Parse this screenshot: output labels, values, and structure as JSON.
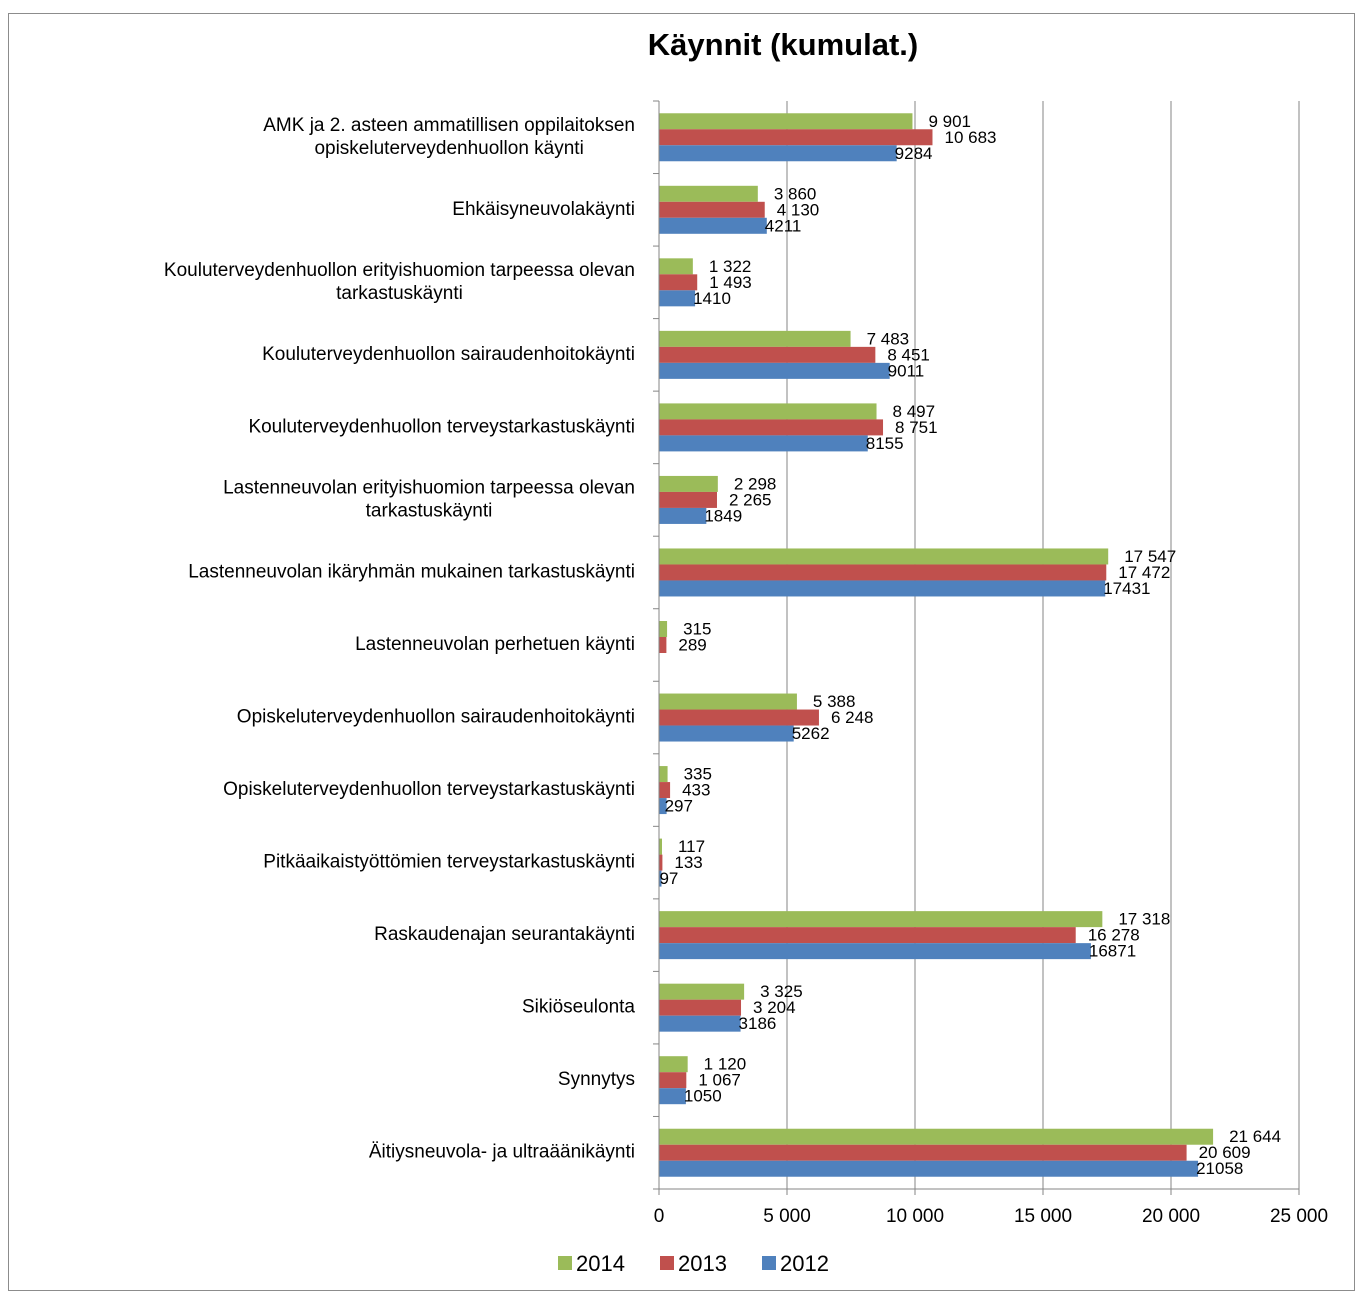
{
  "chart_data": {
    "type": "bar",
    "orientation": "horizontal",
    "title": "Käynnit  (kumulat.)",
    "xlim": [
      0,
      25000
    ],
    "x_ticks": [
      0,
      5000,
      10000,
      15000,
      20000,
      25000
    ],
    "x_tick_labels": [
      "0",
      "5 000",
      "10 000",
      "15 000",
      "20 000",
      "25 000"
    ],
    "grid": "vertical",
    "legend_position": "bottom",
    "categories": [
      "AMK ja 2. asteen ammatillisen oppilaitoksen opiskeluterveydenhuollon käynti",
      "Ehkäisyneuvolakäynti",
      "Kouluterveydenhuollon erityishuomion tarpeessa olevan tarkastuskäynti",
      "Kouluterveydenhuollon sairaudenhoitokäynti",
      "Kouluterveydenhuollon terveystarkastuskäynti",
      "Lastenneuvolan erityishuomion tarpeessa olevan tarkastuskäynti",
      "Lastenneuvolan ikäryhmän mukainen tarkastuskäynti",
      "Lastenneuvolan perhetuen käynti",
      "Opiskeluterveydenhuollon sairaudenhoitokäynti",
      "Opiskeluterveydenhuollon terveystarkastuskäynti",
      "Pitkäaikaistyöttömien terveystarkastuskäynti",
      "Raskaudenajan seurantakäynti",
      "Sikiöseulonta",
      "Synnytys",
      "Äitiysneuvola- ja ultraäänikäynti"
    ],
    "category_lines": [
      [
        "AMK ja 2. asteen ammatillisen oppilaitoksen",
        "opiskeluterveydenhuollon käynti"
      ],
      [
        "Ehkäisyneuvolakäynti"
      ],
      [
        "Kouluterveydenhuollon erityishuomion tarpeessa olevan",
        "tarkastuskäynti"
      ],
      [
        "Kouluterveydenhuollon sairaudenhoitokäynti"
      ],
      [
        "Kouluterveydenhuollon terveystarkastuskäynti"
      ],
      [
        "Lastenneuvolan erityishuomion tarpeessa olevan",
        "tarkastuskäynti"
      ],
      [
        "Lastenneuvolan ikäryhmän mukainen tarkastuskäynti"
      ],
      [
        "Lastenneuvolan perhetuen käynti"
      ],
      [
        "Opiskeluterveydenhuollon sairaudenhoitokäynti"
      ],
      [
        "Opiskeluterveydenhuollon terveystarkastuskäynti"
      ],
      [
        "Pitkäaikaistyöttömien terveystarkastuskäynti"
      ],
      [
        "Raskaudenajan seurantakäynti"
      ],
      [
        "Sikiöseulonta"
      ],
      [
        "Synnytys"
      ],
      [
        "Äitiysneuvola- ja ultraäänikäynti"
      ]
    ],
    "series": [
      {
        "name": "2014",
        "color": "#9bbb59",
        "values": [
          9901,
          3860,
          1322,
          7483,
          8497,
          2298,
          17547,
          315,
          5388,
          335,
          117,
          17318,
          3325,
          1120,
          21644
        ],
        "labels": [
          "9 901",
          "3 860",
          "1 322",
          "7 483",
          "8 497",
          "2 298",
          "17 547",
          "315",
          "5 388",
          "335",
          "117",
          "17 318",
          "3 325",
          "1 120",
          "21 644"
        ]
      },
      {
        "name": "2013",
        "color": "#c0504d",
        "values": [
          10683,
          4130,
          1493,
          8451,
          8751,
          2265,
          17472,
          289,
          6248,
          433,
          133,
          16278,
          3204,
          1067,
          20609
        ],
        "labels": [
          "10 683",
          "4 130",
          "1 493",
          "8 451",
          "8 751",
          "2 265",
          "17 472",
          "289",
          "6 248",
          "433",
          "133",
          "16 278",
          "3 204",
          "1 067",
          "20 609"
        ]
      },
      {
        "name": "2012",
        "color": "#4f81bd",
        "values": [
          9284,
          4211,
          1410,
          9011,
          8155,
          1849,
          17431,
          null,
          5262,
          297,
          97,
          16871,
          3186,
          1050,
          21058
        ],
        "labels": [
          "9284",
          "4211",
          "1410",
          "9011",
          "8155",
          "1849",
          "17431",
          "",
          "5262",
          "297",
          "97",
          "16871",
          "3186",
          "1050",
          "21058"
        ]
      }
    ]
  }
}
